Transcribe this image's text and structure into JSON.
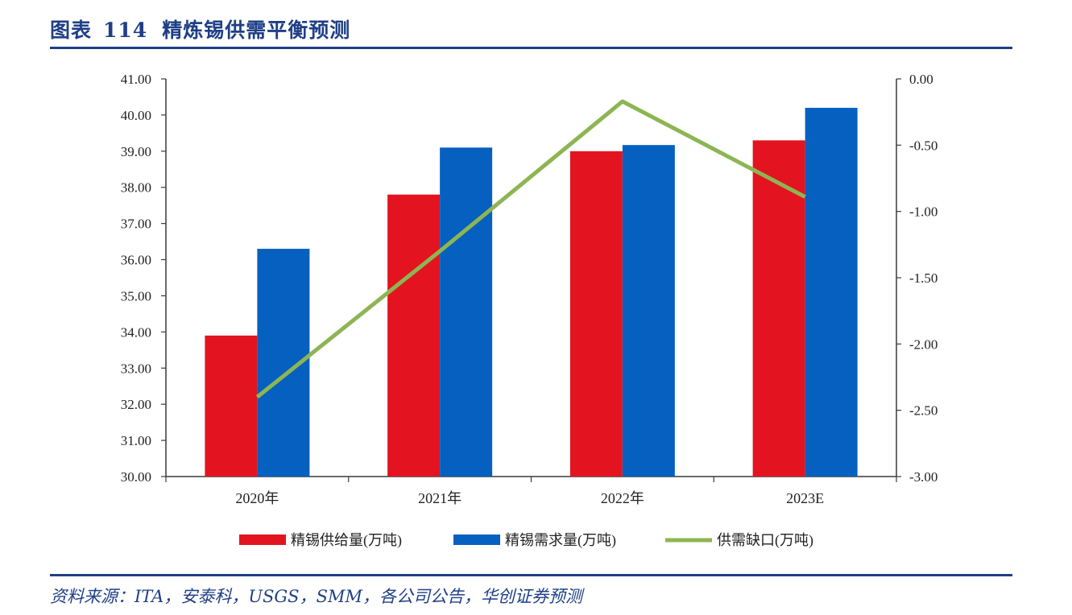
{
  "title": {
    "label": "图表",
    "number": "114",
    "text": "精炼锡供需平衡预测"
  },
  "source": "资料来源：ITA，安泰科，USGS，SMM，各公司公告，华创证券预测",
  "colors": {
    "supply": "#e3141f",
    "demand": "#0660bf",
    "gap": "#8db553",
    "axis": "#3a3a3a",
    "heading": "#1f3f86"
  },
  "chart_data": {
    "type": "bar",
    "categories": [
      "2020年",
      "2021年",
      "2022年",
      "2023E"
    ],
    "series": [
      {
        "name": "精锡供给量(万吨)",
        "type": "bar",
        "axis": "left",
        "values": [
          33.9,
          37.8,
          39.0,
          39.3
        ]
      },
      {
        "name": "精锡需求量(万吨)",
        "type": "bar",
        "axis": "left",
        "values": [
          36.3,
          39.1,
          39.17,
          40.2
        ]
      },
      {
        "name": "供需缺口(万吨)",
        "type": "line",
        "axis": "right",
        "values": [
          -2.4,
          -1.3,
          -0.17,
          -0.89
        ]
      }
    ],
    "y_left": {
      "ylim": [
        30,
        41
      ],
      "ticks": [
        "30.00",
        "31.00",
        "32.00",
        "33.00",
        "34.00",
        "35.00",
        "36.00",
        "37.00",
        "38.00",
        "39.00",
        "40.00",
        "41.00"
      ]
    },
    "y_right": {
      "ylim": [
        -3,
        0
      ],
      "ticks": [
        "-3.00",
        "-2.50",
        "-2.00",
        "-1.50",
        "-1.00",
        "-0.50",
        "0.00"
      ]
    },
    "legend": {
      "position": "bottom"
    },
    "grid": false
  }
}
